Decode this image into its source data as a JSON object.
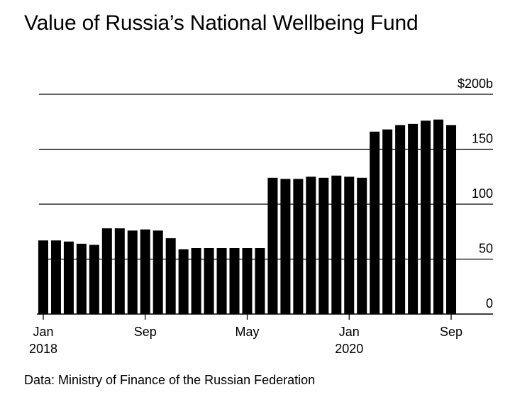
{
  "title": "Value of Russia’s National Wellbeing Fund",
  "source": "Data: Ministry of Finance of the Russian Federation",
  "chart_data": {
    "type": "bar",
    "categories": [
      "2018-01",
      "2018-02",
      "2018-03",
      "2018-04",
      "2018-05",
      "2018-06",
      "2018-07",
      "2018-08",
      "2018-09",
      "2018-10",
      "2018-11",
      "2018-12",
      "2019-01",
      "2019-02",
      "2019-03",
      "2019-04",
      "2019-05",
      "2019-06",
      "2019-07",
      "2019-08",
      "2019-09",
      "2019-10",
      "2019-11",
      "2019-12",
      "2020-01",
      "2020-02",
      "2020-03",
      "2020-04",
      "2020-05",
      "2020-06",
      "2020-07",
      "2020-08",
      "2020-09"
    ],
    "values": [
      67,
      67,
      66,
      64,
      63,
      78,
      78,
      76,
      77,
      76,
      69,
      59,
      60,
      60,
      60,
      60,
      60,
      60,
      124,
      123,
      123,
      125,
      124,
      126,
      125,
      124,
      166,
      168,
      172,
      173,
      176,
      177,
      172
    ],
    "ylim": [
      0,
      200
    ],
    "y_ticks": [
      {
        "value": 0,
        "label": "0"
      },
      {
        "value": 50,
        "label": "50"
      },
      {
        "value": 100,
        "label": "100"
      },
      {
        "value": 150,
        "label": "150"
      },
      {
        "value": 200,
        "label": "$200b"
      }
    ],
    "x_ticks": [
      {
        "category": "2018-01",
        "line1": "Jan",
        "line2": "2018"
      },
      {
        "category": "2018-09",
        "line1": "Sep",
        "line2": ""
      },
      {
        "category": "2019-05",
        "line1": "May",
        "line2": ""
      },
      {
        "category": "2020-01",
        "line1": "Jan",
        "line2": "2020"
      },
      {
        "category": "2020-09",
        "line1": "Sep",
        "line2": ""
      }
    ],
    "grid": true,
    "bar_color": "#000000",
    "grid_color": "#000000"
  }
}
